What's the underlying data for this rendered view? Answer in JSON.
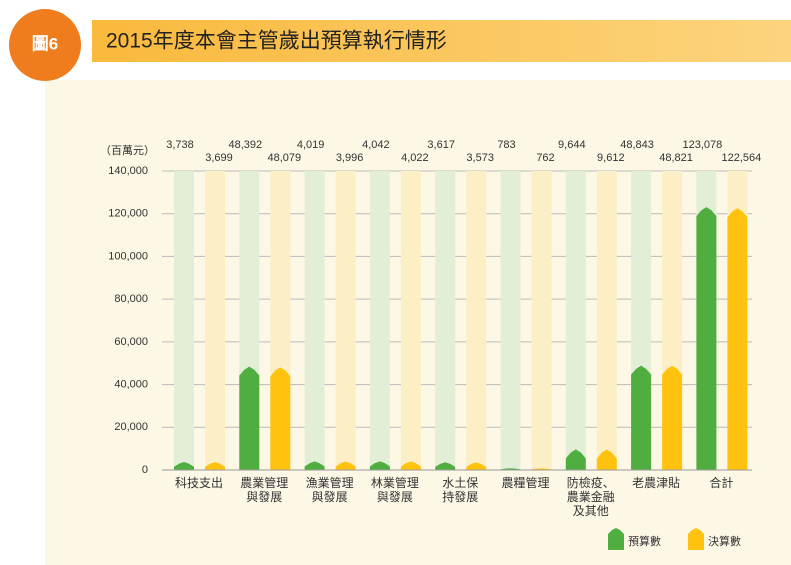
{
  "badge": "圖6",
  "chart_data": {
    "type": "bar",
    "title": "2015年度本會主管歲出預算執行情形",
    "unit_label": "（百萬元）",
    "categories": [
      [
        "科技支出"
      ],
      [
        "農業管理",
        "與發展"
      ],
      [
        "漁業管理",
        "與發展"
      ],
      [
        "林業管理",
        "與發展"
      ],
      [
        "水土保",
        "持發展"
      ],
      [
        "農糧管理"
      ],
      [
        "防檢疫、",
        "農業金融",
        "及其他"
      ],
      [
        "老農津貼"
      ],
      [
        "合計"
      ]
    ],
    "series": [
      {
        "name": "預算數",
        "color": "#4fae3f",
        "background": "#e2eed6",
        "values": [
          3738,
          48392,
          4019,
          4042,
          3617,
          783,
          9644,
          48843,
          123078
        ],
        "value_labels": [
          "3,738",
          "48,392",
          "4,019",
          "4,042",
          "3,617",
          "783",
          "9,644",
          "48,843",
          "123,078"
        ]
      },
      {
        "name": "決算數",
        "color": "#ffc20e",
        "background": "#fcefc6",
        "values": [
          3699,
          48079,
          3996,
          4022,
          3573,
          762,
          9612,
          48821,
          122564
        ],
        "value_labels": [
          "3,699",
          "48,079",
          "3,996",
          "4,022",
          "3,573",
          "762",
          "9,612",
          "48,821",
          "122,564"
        ]
      }
    ],
    "ylim": [
      0,
      140000
    ],
    "yticks": [
      0,
      {
        "value": 20000,
        "label": "20,000"
      },
      {
        "value": 40000,
        "label": "40,000"
      },
      {
        "value": 60000,
        "label": "60,000"
      },
      {
        "value": 80000,
        "label": "80,000"
      },
      {
        "value": 100000,
        "label": "100,000"
      },
      {
        "value": 120000,
        "label": "120,000"
      },
      {
        "value": 140000,
        "label": "140,000"
      }
    ],
    "grid": true
  }
}
